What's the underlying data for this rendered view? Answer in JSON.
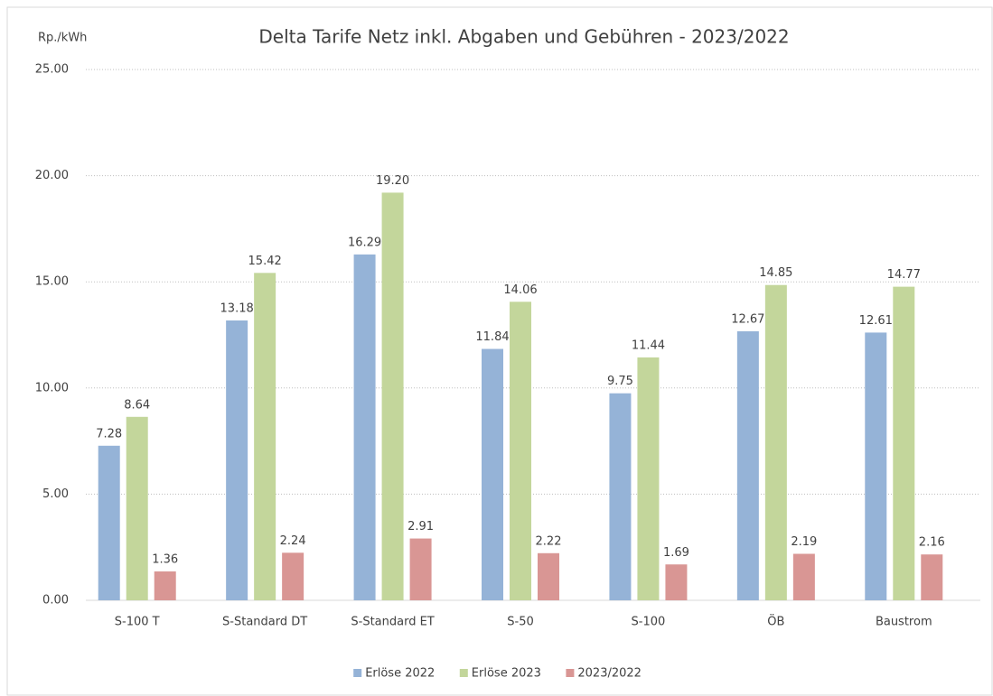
{
  "chart_data": {
    "type": "bar",
    "title": "Delta Tarife Netz inkl. Abgaben und Gebühren - 2023/2022",
    "y_axis_label": "Rp./kWh",
    "categories": [
      "S-100 T",
      "S-Standard DT",
      "S-Standard ET",
      "S-50",
      "S-100",
      "ÖB",
      "Baustrom"
    ],
    "series": [
      {
        "name": "Erlöse 2022",
        "color": "#95b3d7",
        "values": [
          7.28,
          13.18,
          16.29,
          11.84,
          9.75,
          12.67,
          12.61
        ],
        "value_labels": [
          "7.28",
          "13.18",
          "16.29",
          "11.84",
          "9.75",
          "12.67",
          "12.61"
        ]
      },
      {
        "name": "Erlöse 2023",
        "color": "#c3d69b",
        "values": [
          8.64,
          15.42,
          19.2,
          14.06,
          11.44,
          14.85,
          14.77
        ],
        "value_labels": [
          "8.64",
          "15.42",
          "19.20",
          "14.06",
          "11.44",
          "14.85",
          "14.77"
        ]
      },
      {
        "name": "2023/2022",
        "color": "#d99694",
        "values": [
          1.36,
          2.24,
          2.91,
          2.22,
          1.69,
          2.19,
          2.16
        ],
        "value_labels": [
          "1.36",
          "2.24",
          "2.91",
          "2.22",
          "1.69",
          "2.19",
          "2.16"
        ]
      }
    ],
    "ylim": [
      0,
      25
    ],
    "yticks": [
      {
        "value": 0,
        "label": "0.00"
      },
      {
        "value": 5,
        "label": "5.00"
      },
      {
        "value": 10,
        "label": "10.00"
      },
      {
        "value": 15,
        "label": "15.00"
      },
      {
        "value": 20,
        "label": "20.00"
      },
      {
        "value": 25,
        "label": "25.00"
      }
    ],
    "grid": true,
    "legend": "bottom"
  }
}
